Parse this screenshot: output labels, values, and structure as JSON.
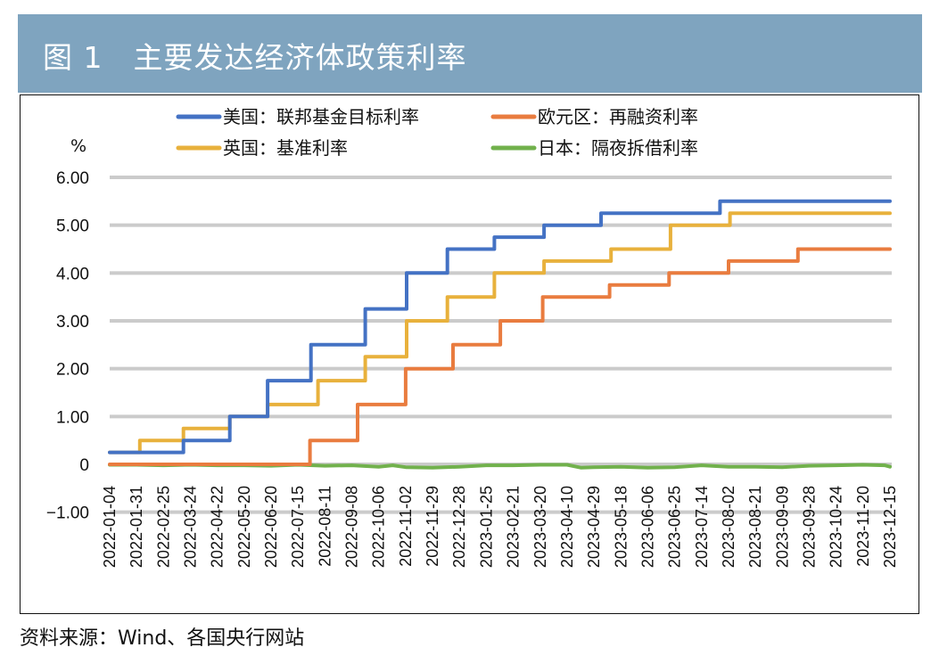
{
  "header": {
    "title": "图 1　主要发达经济体政策利率"
  },
  "source": "资料来源：Wind、各国央行网站",
  "chart_data": {
    "type": "line",
    "title": "图 1　主要发达经济体政策利率",
    "ylabel": "%",
    "ylim": [
      -1,
      6
    ],
    "yticks": [
      6,
      5,
      4,
      3,
      2,
      1,
      0,
      -1
    ],
    "ytick_labels": [
      "6.00",
      "5.00",
      "4.00",
      "3.00",
      "2.00",
      "1.00",
      "0",
      "−1.00"
    ],
    "grid": true,
    "legend_position": "top",
    "step": true,
    "x_tick_labels": [
      "2022-01-04",
      "2022-01-31",
      "2022-02-25",
      "2022-03-24",
      "2022-04-22",
      "2022-05-20",
      "2022-06-20",
      "2022-07-15",
      "2022-08-11",
      "2022-09-08",
      "2022-10-06",
      "2022-11-02",
      "2022-11-29",
      "2022-12-28",
      "2023-01-25",
      "2023-02-21",
      "2023-03-20",
      "2023-04-10",
      "2023-04-29",
      "2023-05-18",
      "2023-06-06",
      "2023-06-25",
      "2023-07-14",
      "2023-08-02",
      "2023-08-21",
      "2023-09-09",
      "2023-09-28",
      "2023-10-24",
      "2023-11-20",
      "2023-12-15"
    ],
    "series": [
      {
        "name": "美国：联邦基金目标利率",
        "color": "#4472c4",
        "points": [
          [
            "2022-01-04",
            0.25
          ],
          [
            "2022-03-17",
            0.5
          ],
          [
            "2022-05-05",
            1.0
          ],
          [
            "2022-06-16",
            1.75
          ],
          [
            "2022-07-28",
            2.5
          ],
          [
            "2022-09-22",
            3.25
          ],
          [
            "2022-11-03",
            4.0
          ],
          [
            "2022-12-15",
            4.5
          ],
          [
            "2023-02-02",
            4.75
          ],
          [
            "2023-03-23",
            5.0
          ],
          [
            "2023-05-04",
            5.25
          ],
          [
            "2023-07-27",
            5.5
          ]
        ]
      },
      {
        "name": "欧元区：再融资利率",
        "color": "#e97c3f",
        "points": [
          [
            "2022-01-04",
            0
          ],
          [
            "2022-07-27",
            0.5
          ],
          [
            "2022-09-14",
            1.25
          ],
          [
            "2022-11-02",
            2.0
          ],
          [
            "2022-12-21",
            2.5
          ],
          [
            "2023-02-08",
            3.0
          ],
          [
            "2023-03-22",
            3.5
          ],
          [
            "2023-05-10",
            3.75
          ],
          [
            "2023-06-21",
            4.0
          ],
          [
            "2023-08-02",
            4.25
          ],
          [
            "2023-09-20",
            4.5
          ]
        ]
      },
      {
        "name": "英国：基准利率",
        "color": "#e8b13c",
        "points": [
          [
            "2022-01-04",
            0.25
          ],
          [
            "2022-02-03",
            0.5
          ],
          [
            "2022-03-17",
            0.75
          ],
          [
            "2022-05-05",
            1.0
          ],
          [
            "2022-06-16",
            1.25
          ],
          [
            "2022-08-04",
            1.75
          ],
          [
            "2022-09-22",
            2.25
          ],
          [
            "2022-11-03",
            3.0
          ],
          [
            "2022-12-15",
            3.5
          ],
          [
            "2023-02-02",
            4.0
          ],
          [
            "2023-03-23",
            4.25
          ],
          [
            "2023-05-11",
            4.5
          ],
          [
            "2023-06-22",
            5.0
          ],
          [
            "2023-08-03",
            5.25
          ]
        ]
      },
      {
        "name": "日本：隔夜拆借利率",
        "color": "#71b14c",
        "step": false,
        "points": [
          [
            "2022-01-04",
            -0.01
          ],
          [
            "2022-01-31",
            -0.01
          ],
          [
            "2022-02-25",
            -0.02
          ],
          [
            "2022-03-24",
            -0.01
          ],
          [
            "2022-04-22",
            -0.02
          ],
          [
            "2022-05-20",
            -0.02
          ],
          [
            "2022-06-20",
            -0.03
          ],
          [
            "2022-07-15",
            -0.01
          ],
          [
            "2022-08-11",
            -0.03
          ],
          [
            "2022-09-08",
            -0.02
          ],
          [
            "2022-10-06",
            -0.05
          ],
          [
            "2022-10-20",
            -0.02
          ],
          [
            "2022-11-02",
            -0.06
          ],
          [
            "2022-11-29",
            -0.07
          ],
          [
            "2022-12-28",
            -0.05
          ],
          [
            "2023-01-25",
            -0.02
          ],
          [
            "2023-02-21",
            -0.02
          ],
          [
            "2023-03-20",
            -0.01
          ],
          [
            "2023-04-10",
            -0.01
          ],
          [
            "2023-04-20",
            -0.07
          ],
          [
            "2023-04-29",
            -0.06
          ],
          [
            "2023-05-18",
            -0.05
          ],
          [
            "2023-06-06",
            -0.07
          ],
          [
            "2023-06-25",
            -0.06
          ],
          [
            "2023-07-14",
            -0.02
          ],
          [
            "2023-08-02",
            -0.05
          ],
          [
            "2023-08-21",
            -0.05
          ],
          [
            "2023-09-09",
            -0.06
          ],
          [
            "2023-09-28",
            -0.03
          ],
          [
            "2023-10-24",
            -0.02
          ],
          [
            "2023-11-20",
            -0.01
          ],
          [
            "2023-12-10",
            -0.02
          ],
          [
            "2023-12-15",
            -0.05
          ]
        ]
      }
    ]
  }
}
